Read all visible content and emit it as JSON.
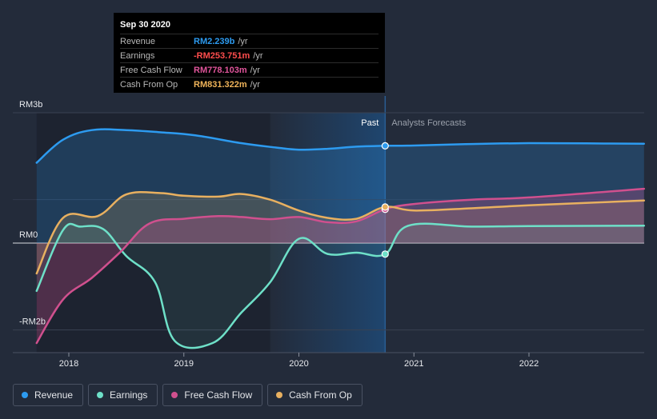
{
  "tooltip": {
    "date": "Sep 30 2020",
    "rows": [
      {
        "label": "Revenue",
        "value": "RM2.239b",
        "unit": "/yr",
        "color": "#2d9bf0"
      },
      {
        "label": "Earnings",
        "value": "-RM253.751m",
        "unit": "/yr",
        "color": "#ff4d4d"
      },
      {
        "label": "Free Cash Flow",
        "value": "RM778.103m",
        "unit": "/yr",
        "color": "#e0559b"
      },
      {
        "label": "Cash From Op",
        "value": "RM831.322m",
        "unit": "/yr",
        "color": "#f0b45a"
      }
    ]
  },
  "regions": {
    "past": "Past",
    "forecast": "Analysts Forecasts"
  },
  "legend": [
    {
      "label": "Revenue",
      "color": "#2d9bf0"
    },
    {
      "label": "Earnings",
      "color": "#6ee0c8"
    },
    {
      "label": "Free Cash Flow",
      "color": "#d0508e"
    },
    {
      "label": "Cash From Op",
      "color": "#e8b060"
    }
  ],
  "chart_data": {
    "type": "area",
    "x_ticks": [
      2018,
      2019,
      2020,
      2021,
      2022
    ],
    "y_ticks": [
      {
        "value": 3000,
        "label": "RM3b"
      },
      {
        "value": 0,
        "label": "RM0"
      },
      {
        "value": -2000,
        "label": "-RM2b"
      }
    ],
    "ylim": [
      -2500,
      3000
    ],
    "xlim": [
      2017.45,
      2023.0
    ],
    "divider_x": 2020.75,
    "series": [
      {
        "name": "Revenue",
        "color": "#2d9bf0",
        "points": [
          [
            2017.72,
            1850
          ],
          [
            2017.95,
            2380
          ],
          [
            2018.2,
            2600
          ],
          [
            2018.5,
            2600
          ],
          [
            2018.8,
            2550
          ],
          [
            2019.1,
            2480
          ],
          [
            2019.5,
            2300
          ],
          [
            2019.8,
            2200
          ],
          [
            2020.0,
            2150
          ],
          [
            2020.25,
            2170
          ],
          [
            2020.5,
            2220
          ],
          [
            2020.75,
            2239
          ],
          [
            2021.0,
            2245
          ],
          [
            2021.5,
            2280
          ],
          [
            2022.0,
            2300
          ],
          [
            2022.5,
            2295
          ],
          [
            2023.0,
            2285
          ]
        ],
        "forecast_from": 2020.75
      },
      {
        "name": "Earnings",
        "color": "#6ee0c8",
        "points": [
          [
            2017.72,
            -1100
          ],
          [
            2017.95,
            300
          ],
          [
            2018.1,
            380
          ],
          [
            2018.3,
            320
          ],
          [
            2018.5,
            -300
          ],
          [
            2018.75,
            -900
          ],
          [
            2018.92,
            -2250
          ],
          [
            2019.25,
            -2300
          ],
          [
            2019.5,
            -1600
          ],
          [
            2019.75,
            -900
          ],
          [
            2020.0,
            100
          ],
          [
            2020.25,
            -250
          ],
          [
            2020.5,
            -220
          ],
          [
            2020.75,
            -254
          ],
          [
            2020.95,
            400
          ],
          [
            2021.5,
            380
          ],
          [
            2022.0,
            390
          ],
          [
            2023.0,
            400
          ]
        ],
        "forecast_from": 2020.75
      },
      {
        "name": "Free Cash Flow",
        "color": "#d0508e",
        "points": [
          [
            2017.72,
            -2300
          ],
          [
            2017.95,
            -1300
          ],
          [
            2018.2,
            -800
          ],
          [
            2018.45,
            -200
          ],
          [
            2018.7,
            450
          ],
          [
            2019.0,
            560
          ],
          [
            2019.3,
            620
          ],
          [
            2019.5,
            600
          ],
          [
            2019.75,
            550
          ],
          [
            2020.0,
            600
          ],
          [
            2020.25,
            480
          ],
          [
            2020.5,
            500
          ],
          [
            2020.75,
            778
          ],
          [
            2021.0,
            900
          ],
          [
            2021.5,
            1000
          ],
          [
            2022.0,
            1050
          ],
          [
            2023.0,
            1250
          ]
        ],
        "forecast_from": 2020.75
      },
      {
        "name": "Cash From Op",
        "color": "#e8b060",
        "points": [
          [
            2017.72,
            -700
          ],
          [
            2017.95,
            580
          ],
          [
            2018.25,
            620
          ],
          [
            2018.5,
            1120
          ],
          [
            2018.8,
            1150
          ],
          [
            2019.0,
            1090
          ],
          [
            2019.3,
            1070
          ],
          [
            2019.5,
            1130
          ],
          [
            2019.75,
            1000
          ],
          [
            2020.0,
            750
          ],
          [
            2020.25,
            580
          ],
          [
            2020.5,
            560
          ],
          [
            2020.75,
            831
          ],
          [
            2021.0,
            750
          ],
          [
            2021.5,
            800
          ],
          [
            2022.0,
            870
          ],
          [
            2023.0,
            980
          ]
        ],
        "forecast_from": 2020.75
      }
    ]
  }
}
